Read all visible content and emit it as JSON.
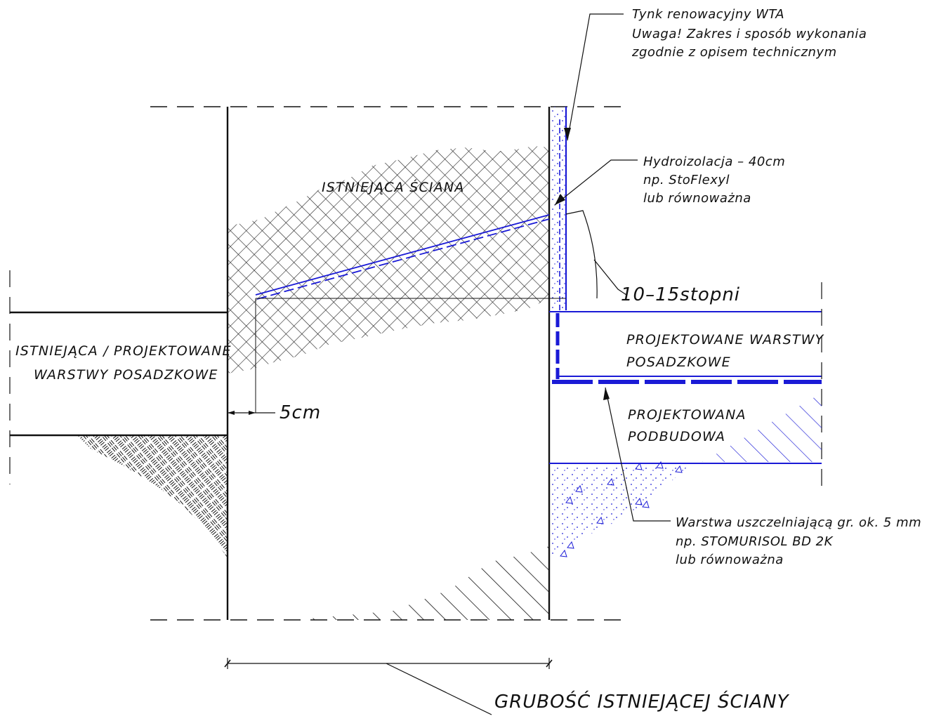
{
  "drawing": {
    "colors": {
      "line": "#111111",
      "accent_blue": "#1a1ad6",
      "background": "#ffffff"
    },
    "labels": {
      "existing_wall": "ISTNIEJĄCA ŚCIANA",
      "left_floor_line1": "ISTNIEJĄCA / PROJEKTOWANE",
      "left_floor_line2": "WARSTWY POSADZKOWE",
      "new_floor_line1": "PROJEKTOWANE WARSTWY",
      "new_floor_line2": "POSADZKOWE",
      "subbase_line1": "PROJEKTOWANA",
      "subbase_line2": "PODBUDOWA",
      "offset_dimension": "5cm",
      "angle_dimension": "10–15stopni",
      "wall_thickness": "GRUBOŚĆ ISTNIEJĄCEJ ŚCIANY"
    },
    "callouts": {
      "plaster": [
        "Tynk renowacyjny WTA",
        "Uwaga! Zakres i sposób wykonania",
        "zgodnie z opisem technicznym"
      ],
      "waterproofing": [
        "Hydroizolacja – 40cm",
        "np. StoFlexyl",
        "lub równoważna"
      ],
      "sealing_layer": [
        "Warstwa uszczelniającą gr. ok. 5 mm",
        "np. STOMURISOL BD 2K",
        "lub równoważna"
      ]
    }
  }
}
